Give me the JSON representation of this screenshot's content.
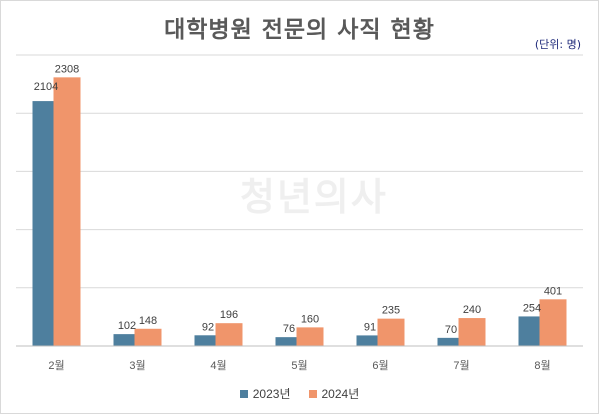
{
  "watermark": "청년의사",
  "chart_data": {
    "type": "bar",
    "title": "대학병원 전문의 사직 현황",
    "unit_note": "(단위: 명)",
    "categories": [
      "2월",
      "3월",
      "4월",
      "5월",
      "6월",
      "7월",
      "8월"
    ],
    "series": [
      {
        "name": "2023년",
        "color": "#4e7f9e",
        "values": [
          2104,
          102,
          92,
          76,
          91,
          70,
          254
        ]
      },
      {
        "name": "2024년",
        "color": "#f0956b",
        "values": [
          2308,
          148,
          196,
          160,
          235,
          240,
          401
        ]
      }
    ],
    "ylim": [
      0,
      2500
    ],
    "grid": true,
    "legend_position": "bottom-center",
    "xlabel": "",
    "ylabel": ""
  }
}
